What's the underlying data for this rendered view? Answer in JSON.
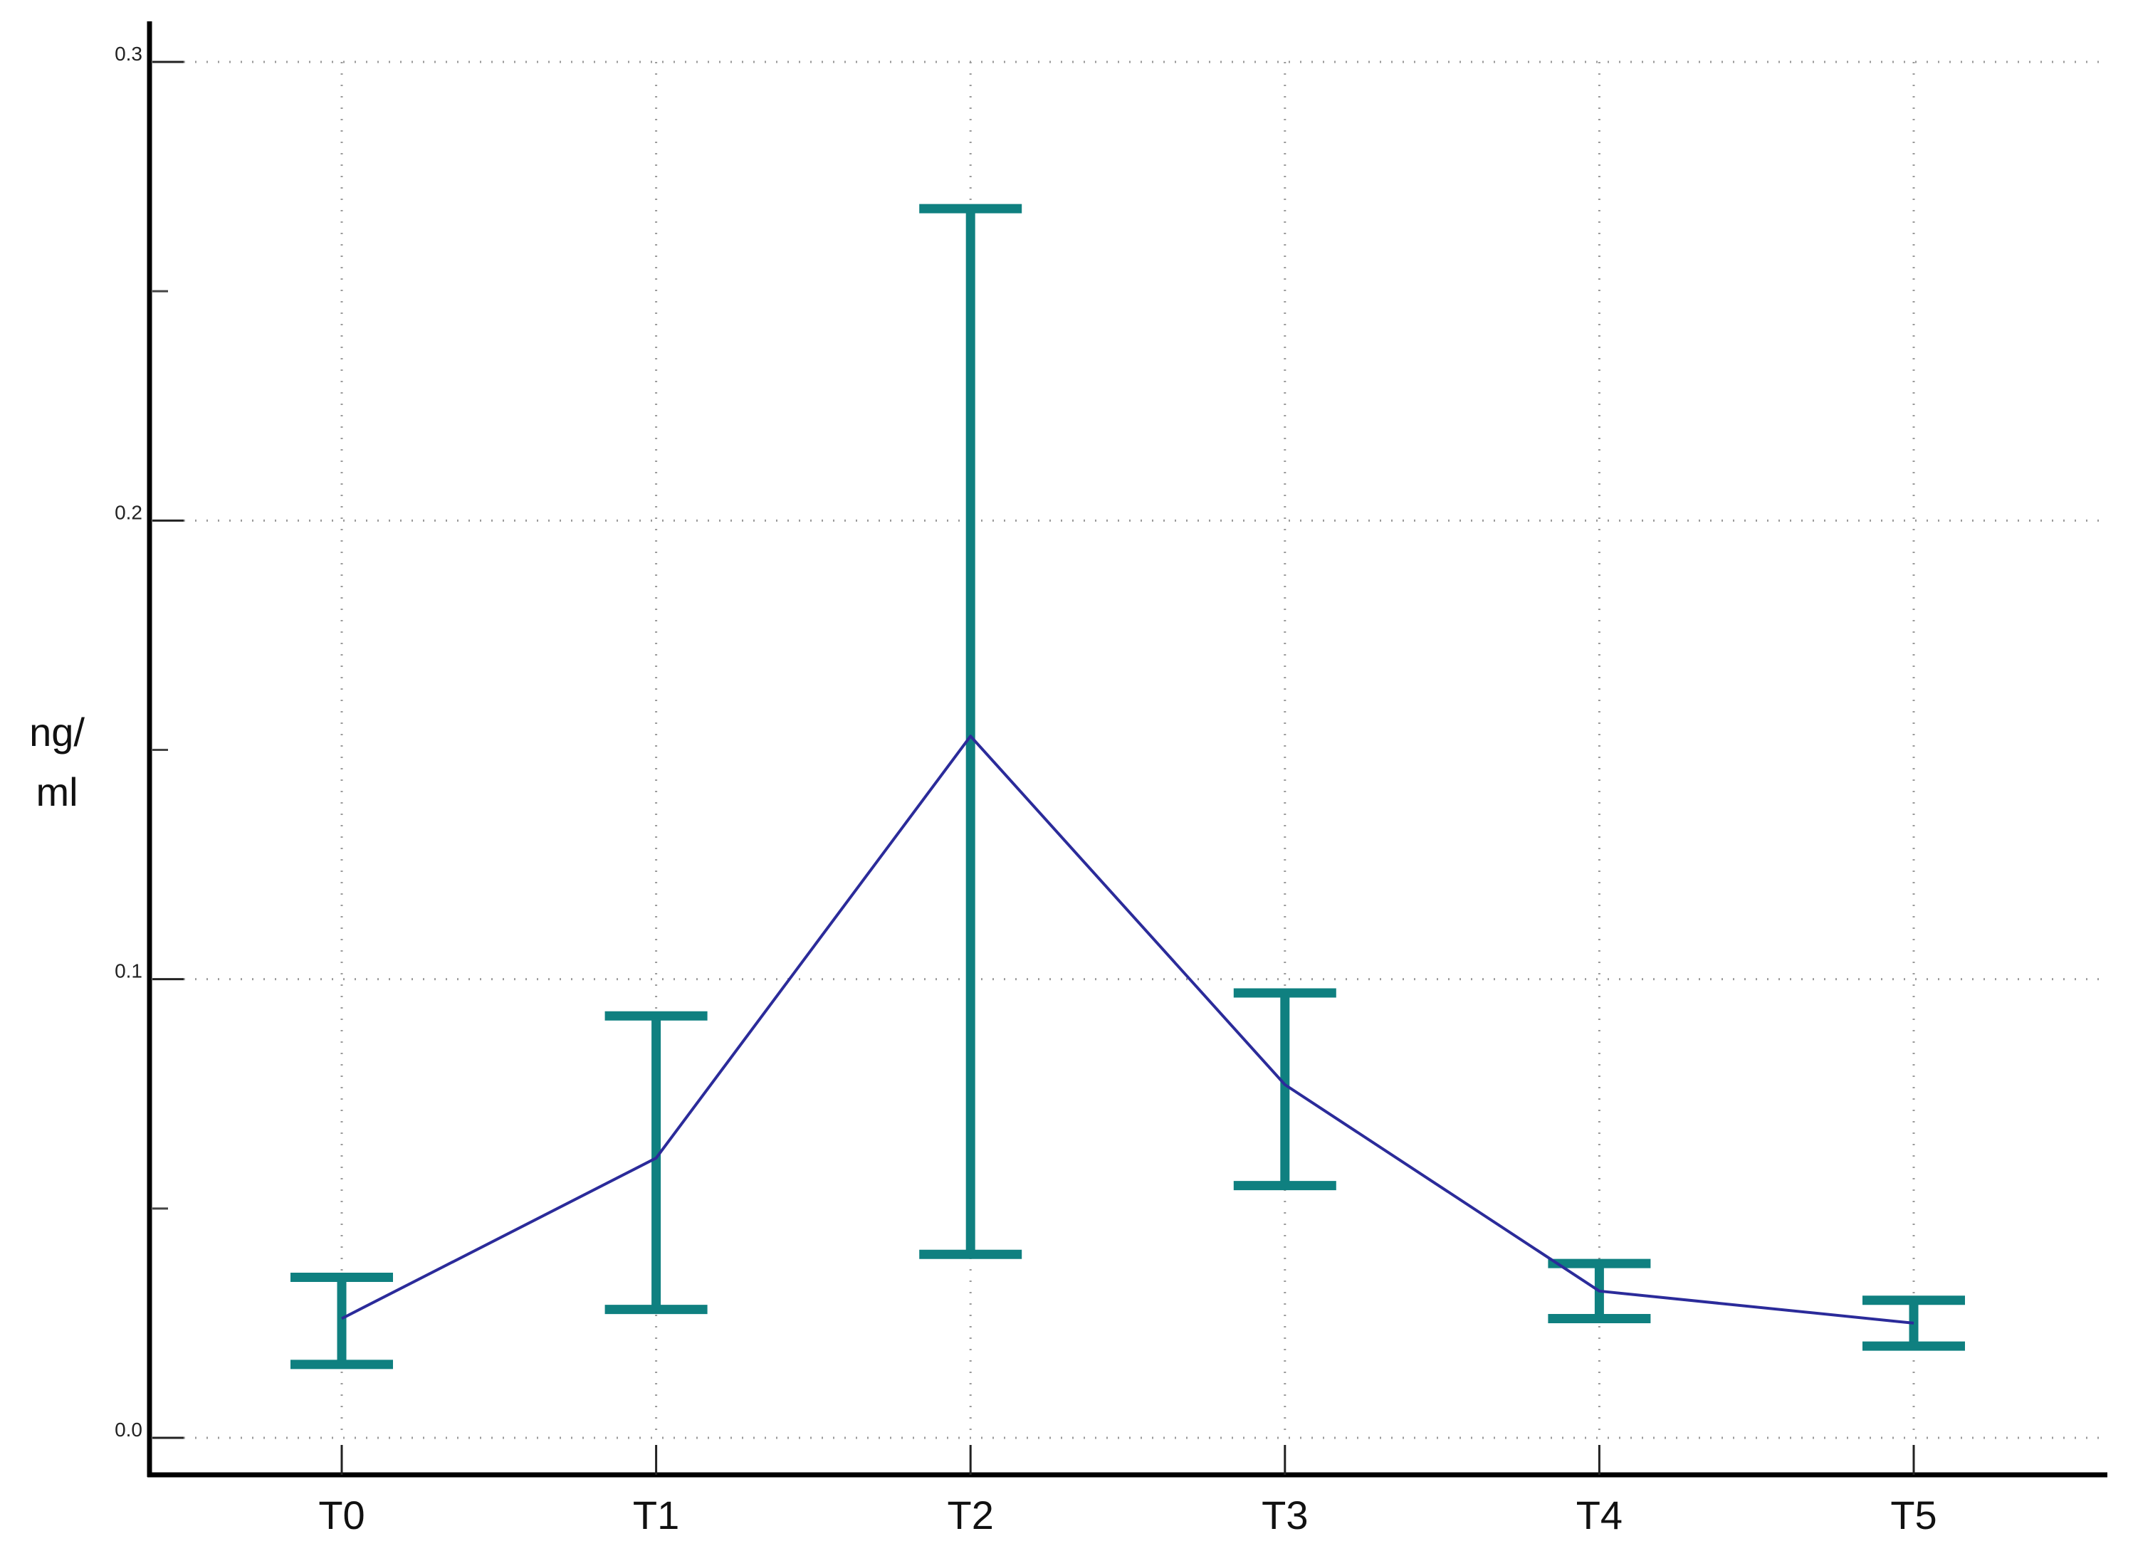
{
  "chart_data": {
    "type": "line",
    "categories": [
      "T0",
      "T1",
      "T2",
      "T3",
      "T4",
      "T5"
    ],
    "series": [
      {
        "values": [
          0.026,
          0.061,
          0.153,
          0.077,
          0.032,
          0.025
        ],
        "error_low": [
          0.016,
          0.028,
          0.04,
          0.055,
          0.026,
          0.02
        ],
        "error_high": [
          0.035,
          0.092,
          0.268,
          0.097,
          0.038,
          0.03
        ],
        "color": "#2b2b9a"
      }
    ],
    "error_bar_color": "#0f8080",
    "title": "",
    "xlabel": "",
    "ylabel_lines": [
      "ng/",
      "ml"
    ],
    "ylim": [
      0.0,
      0.3
    ],
    "yticks": [
      "0.0",
      "0.1",
      "0.2",
      "0.3"
    ],
    "yticks_values": [
      0.0,
      0.1,
      0.2,
      0.3
    ],
    "minor_yticks_values": [
      0.05,
      0.15,
      0.25
    ],
    "grid": true,
    "legend": false
  }
}
